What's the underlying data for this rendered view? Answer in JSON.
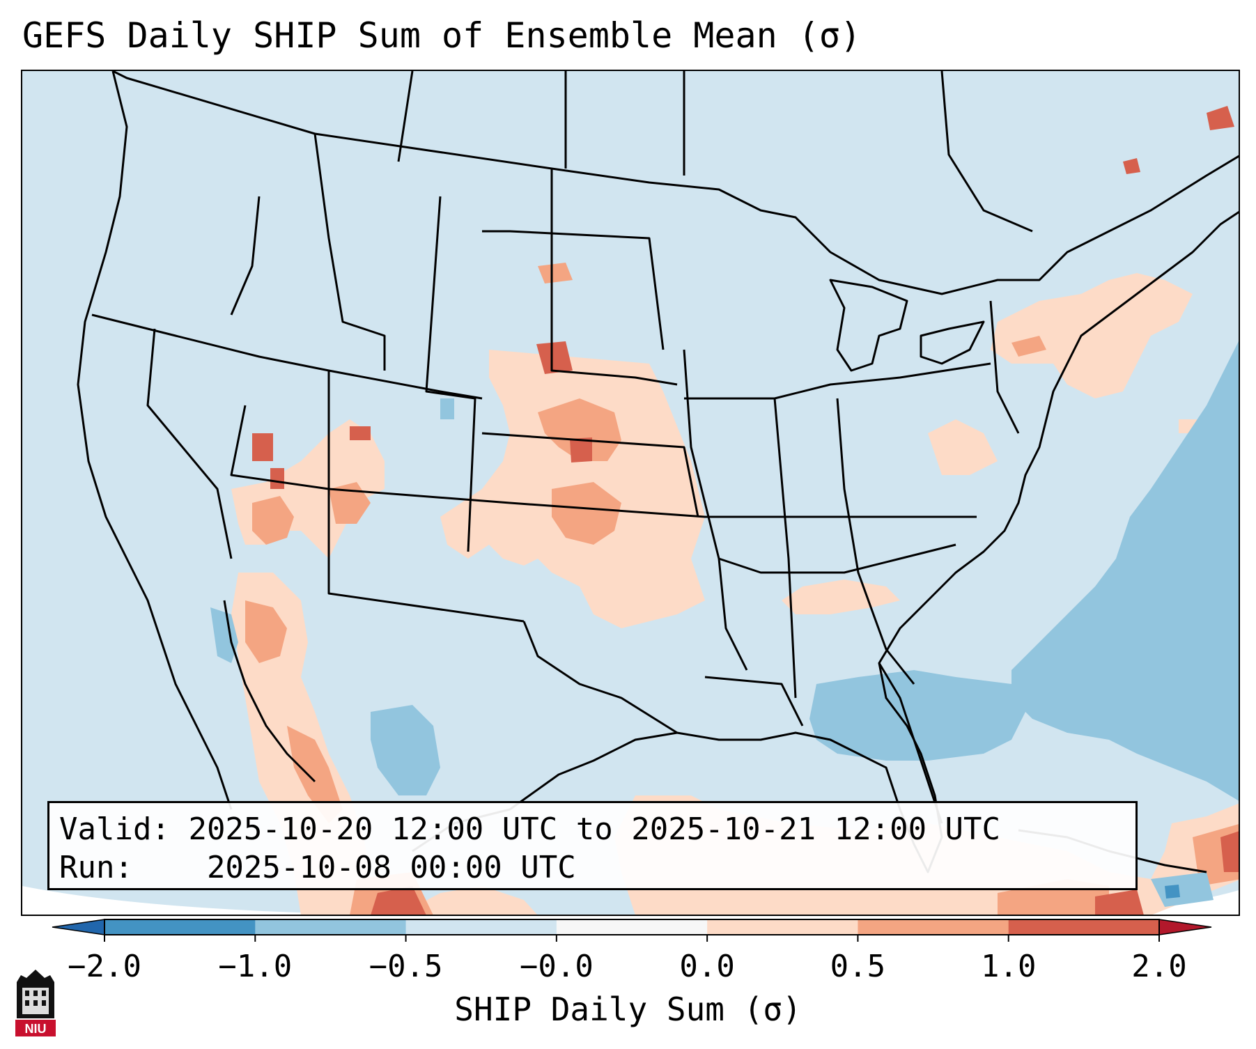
{
  "title": "GEFS Daily SHIP Sum of Ensemble Mean (σ)",
  "info": {
    "valid_label": "Valid:",
    "valid_value": "2025-10-20 12:00 UTC to 2025-10-21 12:00 UTC",
    "run_label": "Run:",
    "run_value": "2025-10-08 00:00 UTC"
  },
  "colorbar": {
    "label": "SHIP Daily Sum (σ)",
    "ticks": [
      "−2.0",
      "−1.0",
      "−0.5",
      "−0.0",
      "0.0",
      "0.5",
      "1.0",
      "2.0"
    ],
    "colors": [
      "#4393c3",
      "#92c5de",
      "#d1e5f0",
      "#f7f7f7",
      "#fddbc7",
      "#f4a582",
      "#d6604d"
    ],
    "extend_low_color": "#2166ac",
    "extend_high_color": "#b2182b"
  },
  "map": {
    "background_color": "#d1e5f0",
    "border_color": "#000000",
    "region": "Contiguous United States, southern Canada, northern Mexico"
  },
  "logo": {
    "text": "NIU",
    "color": "#c8102e"
  }
}
